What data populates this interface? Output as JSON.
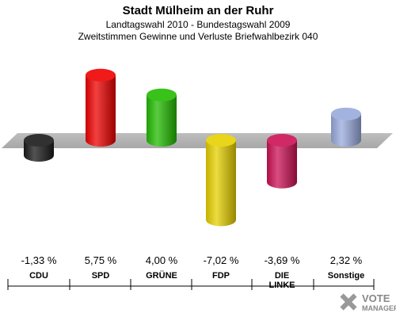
{
  "chart_data": {
    "type": "bar",
    "title": "Stadt Mülheim an der Ruhr",
    "subtitle1": "Landtagswahl 2010 - Bundestagswahl 2009",
    "subtitle2": "Zweitstimmen Gewinne und Verluste Briefwahlbezirk 040",
    "categories": [
      "CDU",
      "SPD",
      "GRÜNE",
      "FDP",
      "DIE LINKE",
      "Sonstige"
    ],
    "values": [
      -1.33,
      5.75,
      4.0,
      -7.02,
      -3.69,
      2.32
    ],
    "value_labels": [
      "-1,33 %",
      "5,75 %",
      "4,00 %",
      "-7,02 %",
      "-3,69 %",
      "2,32 %"
    ],
    "colors": [
      "#1a1a1a",
      "#ee0000",
      "#22bb00",
      "#e6d000",
      "#cc1155",
      "#99aadd"
    ],
    "ylim": [
      -8,
      7
    ],
    "grid": false,
    "legend": "none"
  },
  "logo": {
    "line1": "VOTE",
    "line2": "MANAGER"
  }
}
